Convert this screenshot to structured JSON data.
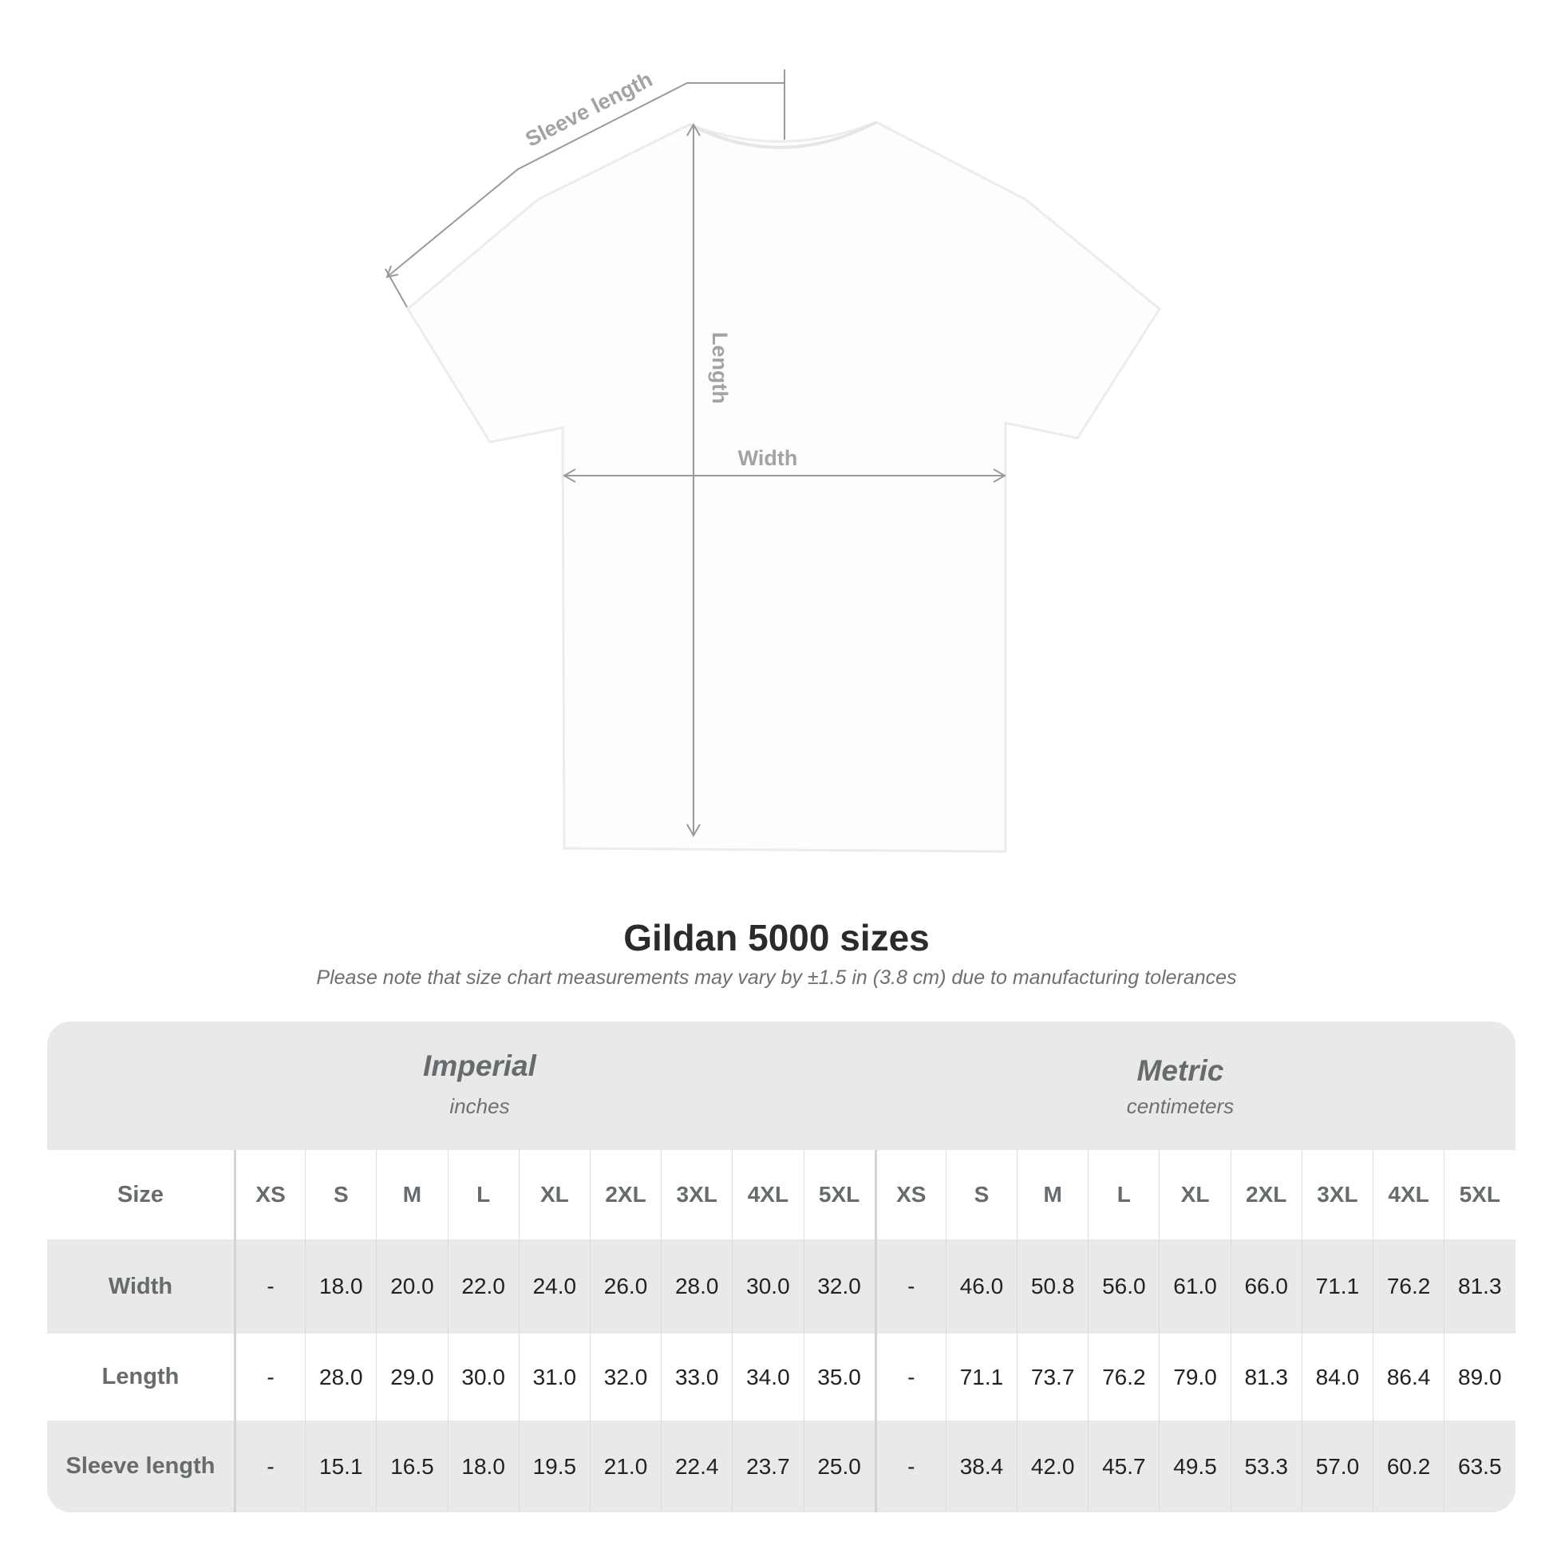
{
  "diagram": {
    "labels": {
      "sleeve": "Sleeve length",
      "length": "Length",
      "width": "Width"
    },
    "shirt_color": "#ffffff",
    "line_color": "#9a9a9a"
  },
  "title": "Gildan 5000 sizes",
  "note": "Please note that size chart measurements may vary by ±1.5 in (3.8 cm) due to manufacturing tolerances",
  "table": {
    "imperial": {
      "name": "Imperial",
      "unit": "inches"
    },
    "metric": {
      "name": "Metric",
      "unit": "centimeters"
    },
    "size_label": "Size",
    "sizes": [
      "XS",
      "S",
      "M",
      "L",
      "XL",
      "2XL",
      "3XL",
      "4XL",
      "5XL"
    ],
    "rows": [
      {
        "label": "Width",
        "imperial": [
          "-",
          "18.0",
          "20.0",
          "22.0",
          "24.0",
          "26.0",
          "28.0",
          "30.0",
          "32.0"
        ],
        "metric": [
          "-",
          "46.0",
          "50.8",
          "56.0",
          "61.0",
          "66.0",
          "71.1",
          "76.2",
          "81.3"
        ]
      },
      {
        "label": "Length",
        "imperial": [
          "-",
          "28.0",
          "29.0",
          "30.0",
          "31.0",
          "32.0",
          "33.0",
          "34.0",
          "35.0"
        ],
        "metric": [
          "-",
          "71.1",
          "73.7",
          "76.2",
          "79.0",
          "81.3",
          "84.0",
          "86.4",
          "89.0"
        ]
      },
      {
        "label": "Sleeve length",
        "imperial": [
          "-",
          "15.1",
          "16.5",
          "18.0",
          "19.5",
          "21.0",
          "22.4",
          "23.7",
          "25.0"
        ],
        "metric": [
          "-",
          "38.4",
          "42.0",
          "45.7",
          "49.5",
          "53.3",
          "57.0",
          "60.2",
          "63.5"
        ]
      }
    ],
    "colors": {
      "band": "#e9e9e9",
      "label": "#666b6d",
      "value": "#222222"
    }
  }
}
